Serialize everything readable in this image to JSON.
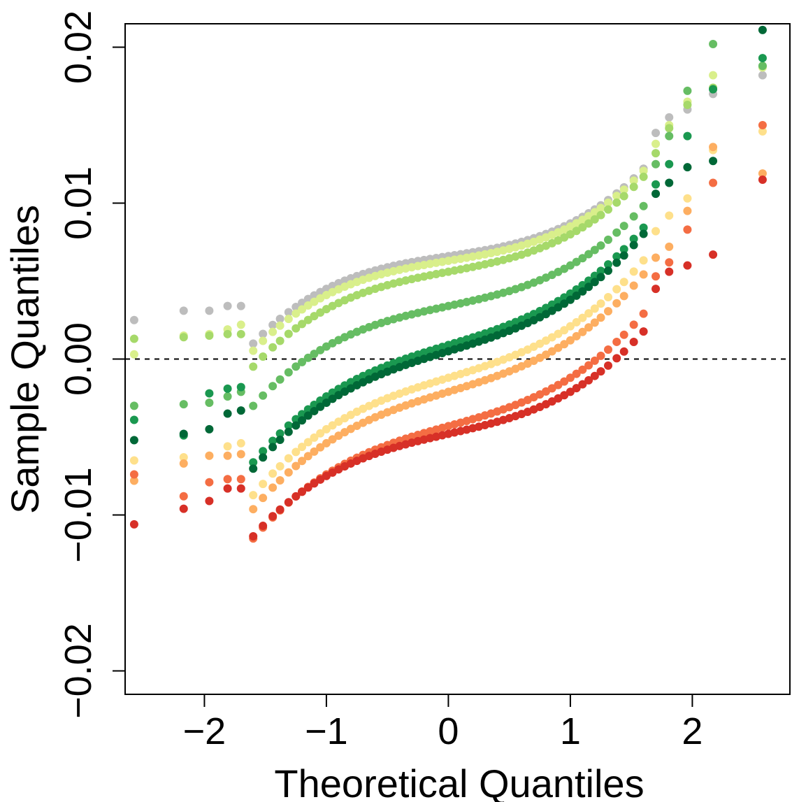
{
  "chart_data": {
    "type": "scatter",
    "title": "",
    "xlabel": "Theoretical Quantiles",
    "ylabel": "Sample Quantiles",
    "xlim": [
      -2.65,
      2.8
    ],
    "ylim": [
      -0.0215,
      0.0215
    ],
    "x_ticks": [
      -2,
      -1,
      0,
      1,
      2
    ],
    "x_tick_labels": [
      "−2",
      "−1",
      "0",
      "1",
      "2"
    ],
    "y_ticks": [
      -0.02,
      -0.01,
      0.0,
      0.01,
      0.02
    ],
    "y_tick_labels": [
      "−0.02",
      "−0.01",
      "0.00",
      "0.01",
      "0.02"
    ],
    "reference_line": {
      "y": 0.0,
      "style": "dashed"
    },
    "grid": false,
    "legend": "none",
    "theoretical_quantiles": [
      -2.576,
      -2.17,
      -1.96,
      -1.81,
      -1.7,
      -1.6,
      -1.52,
      -1.44,
      -1.38,
      -1.31,
      -1.25,
      -1.2,
      -1.15,
      -1.1,
      -1.05,
      -1.0,
      -0.95,
      -0.9,
      -0.85,
      -0.8,
      -0.75,
      -0.7,
      -0.65,
      -0.6,
      -0.55,
      -0.5,
      -0.45,
      -0.4,
      -0.35,
      -0.3,
      -0.25,
      -0.2,
      -0.15,
      -0.1,
      -0.05,
      0.0,
      0.05,
      0.1,
      0.15,
      0.2,
      0.25,
      0.3,
      0.35,
      0.4,
      0.45,
      0.5,
      0.55,
      0.6,
      0.65,
      0.7,
      0.75,
      0.8,
      0.85,
      0.9,
      0.95,
      1.0,
      1.05,
      1.1,
      1.15,
      1.2,
      1.25,
      1.31,
      1.38,
      1.44,
      1.52,
      1.6,
      1.7,
      1.81,
      1.96,
      2.17,
      2.576
    ],
    "series": [
      {
        "color": "#bdbdbd",
        "low": [
          0.0025,
          0.0031,
          0.0031,
          0.0034,
          0.0034
        ],
        "center": 0.0066,
        "slope": 0.0012,
        "high": [
          0.0145,
          0.0155,
          0.016,
          0.017,
          0.0182
        ]
      },
      {
        "color": "#d9ef8b",
        "low": [
          0.0003,
          0.0015,
          0.0016,
          0.0019,
          0.0022
        ],
        "center": 0.0063,
        "slope": 0.0013,
        "high": [
          0.0138,
          0.015,
          0.0165,
          0.0182,
          0.0187
        ]
      },
      {
        "color": "#a6d96a",
        "low": [
          0.0013,
          0.0014,
          0.0015,
          0.0016,
          0.0016
        ],
        "center": 0.0056,
        "slope": 0.0015,
        "high": [
          0.0132,
          0.0148,
          0.0163,
          0.0174,
          0.0188
        ]
      },
      {
        "color": "#66bd63",
        "low": [
          -0.003,
          -0.0029,
          -0.0028,
          -0.0024,
          -0.0021
        ],
        "center": 0.0034,
        "slope": 0.0017,
        "high": [
          0.0125,
          0.0143,
          0.0172,
          0.0202,
          0.0188
        ]
      },
      {
        "color": "#1a9850",
        "low": [
          -0.0039,
          -0.0049,
          -0.0022,
          -0.0019,
          -0.0018
        ],
        "center": 0.0009,
        "slope": 0.0024,
        "high": [
          0.0112,
          0.0125,
          0.0143,
          0.0173,
          0.0193
        ]
      },
      {
        "color": "#006837",
        "low": [
          -0.0052,
          -0.0048,
          -0.0045,
          -0.0035,
          -0.0033
        ],
        "center": 0.0005,
        "slope": 0.0024,
        "high": [
          0.0106,
          0.0113,
          0.0123,
          0.0127,
          0.0211
        ]
      },
      {
        "color": "#fee08b",
        "low": [
          -0.0065,
          -0.0063,
          -0.0062,
          -0.0056,
          -0.0054
        ],
        "center": -0.0012,
        "slope": 0.0024,
        "high": [
          0.0082,
          0.0092,
          0.0103,
          0.0134,
          0.0146
        ]
      },
      {
        "color": "#fdae61",
        "low": [
          -0.0078,
          -0.0067,
          -0.0062,
          -0.0062,
          -0.0061
        ],
        "center": -0.0021,
        "slope": 0.0024,
        "high": [
          0.0065,
          0.0072,
          0.0095,
          0.0136,
          0.0119
        ]
      },
      {
        "color": "#f46d43",
        "low": [
          -0.0074,
          -0.0088,
          -0.0079,
          -0.0077,
          -0.0077
        ],
        "center": -0.0043,
        "slope": 0.0022,
        "high": [
          0.0053,
          0.0062,
          0.0083,
          0.0113,
          0.015
        ]
      },
      {
        "color": "#d73027",
        "low": [
          -0.0106,
          -0.0096,
          -0.0091,
          -0.0083,
          -0.0083
        ],
        "center": -0.0048,
        "slope": 0.0018,
        "high": [
          0.0045,
          0.0056,
          0.006,
          0.0067,
          0.0115
        ]
      }
    ]
  }
}
